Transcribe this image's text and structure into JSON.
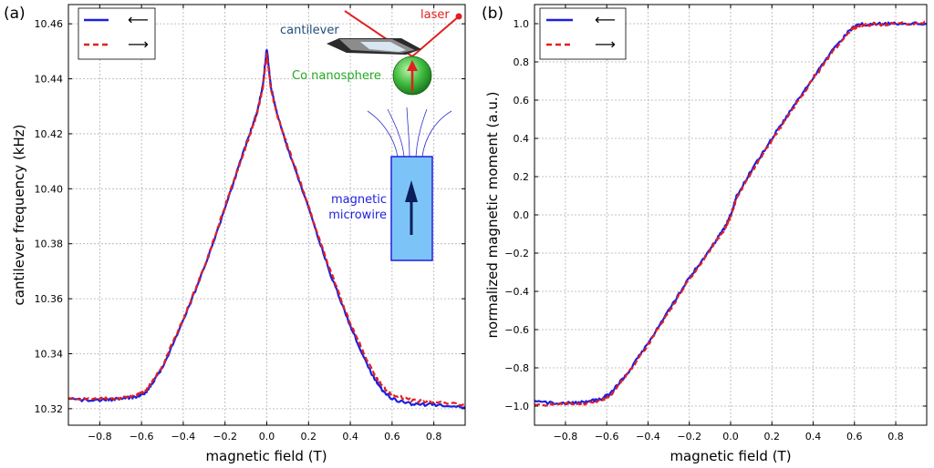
{
  "chart_data": [
    {
      "type": "line",
      "panel_label": "(a)",
      "xlabel": "magnetic field (T)",
      "ylabel": "cantilever frequency (kHz)",
      "xlim": [
        -0.95,
        0.95
      ],
      "ylim": [
        10.314,
        10.467
      ],
      "xticks": [
        -0.8,
        -0.6,
        -0.4,
        -0.2,
        0.0,
        0.2,
        0.4,
        0.6,
        0.8
      ],
      "xtick_labels": [
        "−0.8",
        "−0.6",
        "−0.4",
        "−0.2",
        "0.0",
        "0.2",
        "0.4",
        "0.6",
        "0.8"
      ],
      "yticks": [
        10.32,
        10.34,
        10.36,
        10.38,
        10.4,
        10.42,
        10.44,
        10.46
      ],
      "ytick_labels": [
        "10.32",
        "10.34",
        "10.36",
        "10.38",
        "10.40",
        "10.42",
        "10.44",
        "10.46"
      ],
      "grid": true,
      "legend_position": "top-left",
      "series": [
        {
          "name": "⟵",
          "color": "#1f1fe0",
          "style": "solid",
          "x": [
            -0.95,
            -0.8,
            -0.7,
            -0.62,
            -0.58,
            -0.55,
            -0.5,
            -0.4,
            -0.3,
            -0.2,
            -0.1,
            -0.05,
            -0.02,
            0.0,
            0.02,
            0.05,
            0.1,
            0.2,
            0.3,
            0.4,
            0.5,
            0.55,
            0.6,
            0.7,
            0.8,
            0.95
          ],
          "y": [
            10.3232,
            10.3232,
            10.3235,
            10.3245,
            10.326,
            10.329,
            10.335,
            10.352,
            10.371,
            10.393,
            10.416,
            10.427,
            10.437,
            10.451,
            10.437,
            10.427,
            10.415,
            10.393,
            10.37,
            10.35,
            10.333,
            10.327,
            10.3235,
            10.3215,
            10.3215,
            10.3205
          ]
        },
        {
          "name": "⟶",
          "color": "#e02020",
          "style": "dashed",
          "x": [
            -0.95,
            -0.8,
            -0.7,
            -0.62,
            -0.58,
            -0.55,
            -0.5,
            -0.4,
            -0.3,
            -0.2,
            -0.1,
            -0.05,
            -0.02,
            0.0,
            0.02,
            0.05,
            0.1,
            0.2,
            0.3,
            0.4,
            0.5,
            0.55,
            0.6,
            0.7,
            0.8,
            0.95
          ],
          "y": [
            10.3237,
            10.3235,
            10.324,
            10.3252,
            10.3268,
            10.3295,
            10.3355,
            10.3525,
            10.3715,
            10.3935,
            10.4155,
            10.4265,
            10.436,
            10.449,
            10.436,
            10.4265,
            10.4155,
            10.3935,
            10.371,
            10.351,
            10.3345,
            10.3285,
            10.325,
            10.323,
            10.3225,
            10.3215
          ]
        }
      ],
      "annotations": {
        "laser": "laser",
        "cantilever": "cantilever",
        "nanosphere": "Co nanosphere",
        "microwire": [
          "magnetic",
          "microwire"
        ],
        "laser_color": "#e02020",
        "cantilever_text_color": "#1f4e79",
        "nanosphere_text_color": "#22aa22",
        "microwire_text_color": "#1f1fe0"
      }
    },
    {
      "type": "line",
      "panel_label": "(b)",
      "xlabel": "magnetic field (T)",
      "ylabel": "normalized magnetic moment (a.u.)",
      "xlim": [
        -0.95,
        0.95
      ],
      "ylim": [
        -1.1,
        1.1
      ],
      "xticks": [
        -0.8,
        -0.6,
        -0.4,
        -0.2,
        0.0,
        0.2,
        0.4,
        0.6,
        0.8
      ],
      "xtick_labels": [
        "−0.8",
        "−0.6",
        "−0.4",
        "−0.2",
        "0.0",
        "0.2",
        "0.4",
        "0.6",
        "0.8"
      ],
      "yticks": [
        -1.0,
        -0.8,
        -0.6,
        -0.4,
        -0.2,
        0.0,
        0.2,
        0.4,
        0.6,
        0.8,
        1.0
      ],
      "ytick_labels": [
        "−1.0",
        "−0.8",
        "−0.6",
        "−0.4",
        "−0.2",
        "0.0",
        "0.2",
        "0.4",
        "0.6",
        "0.8",
        "1.0"
      ],
      "grid": true,
      "legend_position": "top-left",
      "series": [
        {
          "name": "⟵",
          "color": "#1f1fe0",
          "style": "solid",
          "x": [
            -0.95,
            -0.8,
            -0.7,
            -0.62,
            -0.58,
            -0.5,
            -0.4,
            -0.3,
            -0.2,
            -0.1,
            -0.03,
            0.0,
            0.03,
            0.1,
            0.2,
            0.3,
            0.4,
            0.5,
            0.58,
            0.62,
            0.7,
            0.8,
            0.95
          ],
          "y": [
            -0.98,
            -0.985,
            -0.98,
            -0.96,
            -0.93,
            -0.83,
            -0.67,
            -0.5,
            -0.33,
            -0.18,
            -0.07,
            0.0,
            0.1,
            0.23,
            0.4,
            0.56,
            0.72,
            0.87,
            0.97,
            0.995,
            1.0,
            1.0,
            1.0
          ]
        },
        {
          "name": "⟶",
          "color": "#e02020",
          "style": "dashed",
          "x": [
            -0.95,
            -0.8,
            -0.7,
            -0.62,
            -0.58,
            -0.5,
            -0.4,
            -0.3,
            -0.2,
            -0.1,
            -0.03,
            0.0,
            0.03,
            0.1,
            0.2,
            0.3,
            0.4,
            0.5,
            0.58,
            0.62,
            0.7,
            0.8,
            0.95
          ],
          "y": [
            -0.995,
            -0.99,
            -0.985,
            -0.965,
            -0.94,
            -0.835,
            -0.68,
            -0.51,
            -0.335,
            -0.185,
            -0.075,
            -0.01,
            0.09,
            0.22,
            0.39,
            0.55,
            0.71,
            0.86,
            0.965,
            0.99,
            0.995,
            1.0,
            1.005
          ]
        }
      ]
    }
  ]
}
